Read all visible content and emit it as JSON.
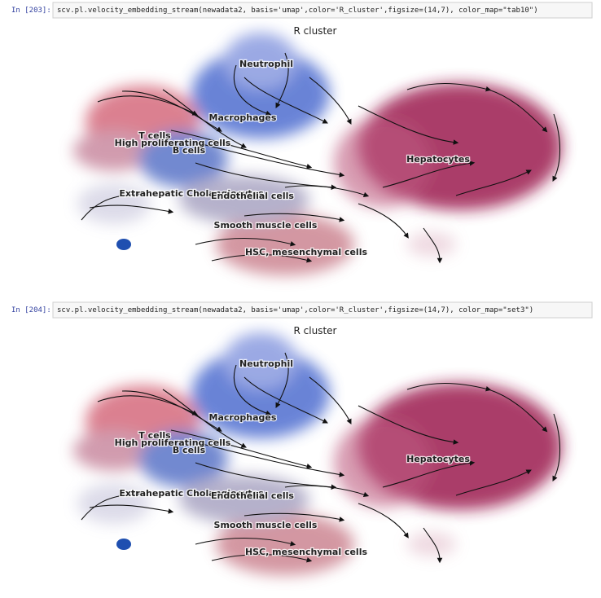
{
  "cells": [
    {
      "prompt": "In [203]:",
      "code": "scv.pl.velocity_embedding_stream(newadata2, basis='umap',color='R_cluster',figsize=(14,7), color_map=\"tab10\")",
      "output": {
        "title": "R cluster",
        "labels": [
          "Neutrophil",
          "Macrophages",
          "T cells",
          "High proliferating cells",
          "B cells",
          "Hepatocytes",
          "Extrahepatic Cholangiocytes",
          "Endothelial cells",
          "Smooth muscle cells",
          "HSC, mesenchymal cells"
        ]
      }
    },
    {
      "prompt": "In [204]:",
      "code": "scv.pl.velocity_embedding_stream(newadata2, basis='umap',color='R_cluster',figsize=(14,7), color_map=\"set3\")",
      "output": {
        "title": "R cluster",
        "labels": [
          "Neutrophil",
          "Macrophages",
          "T cells",
          "High proliferating cells",
          "B cells",
          "Hepatocytes",
          "Extrahepatic Cholangiocytes",
          "Endothelial cells",
          "Smooth muscle cells",
          "HSC, mesenchymal cells"
        ]
      }
    }
  ]
}
